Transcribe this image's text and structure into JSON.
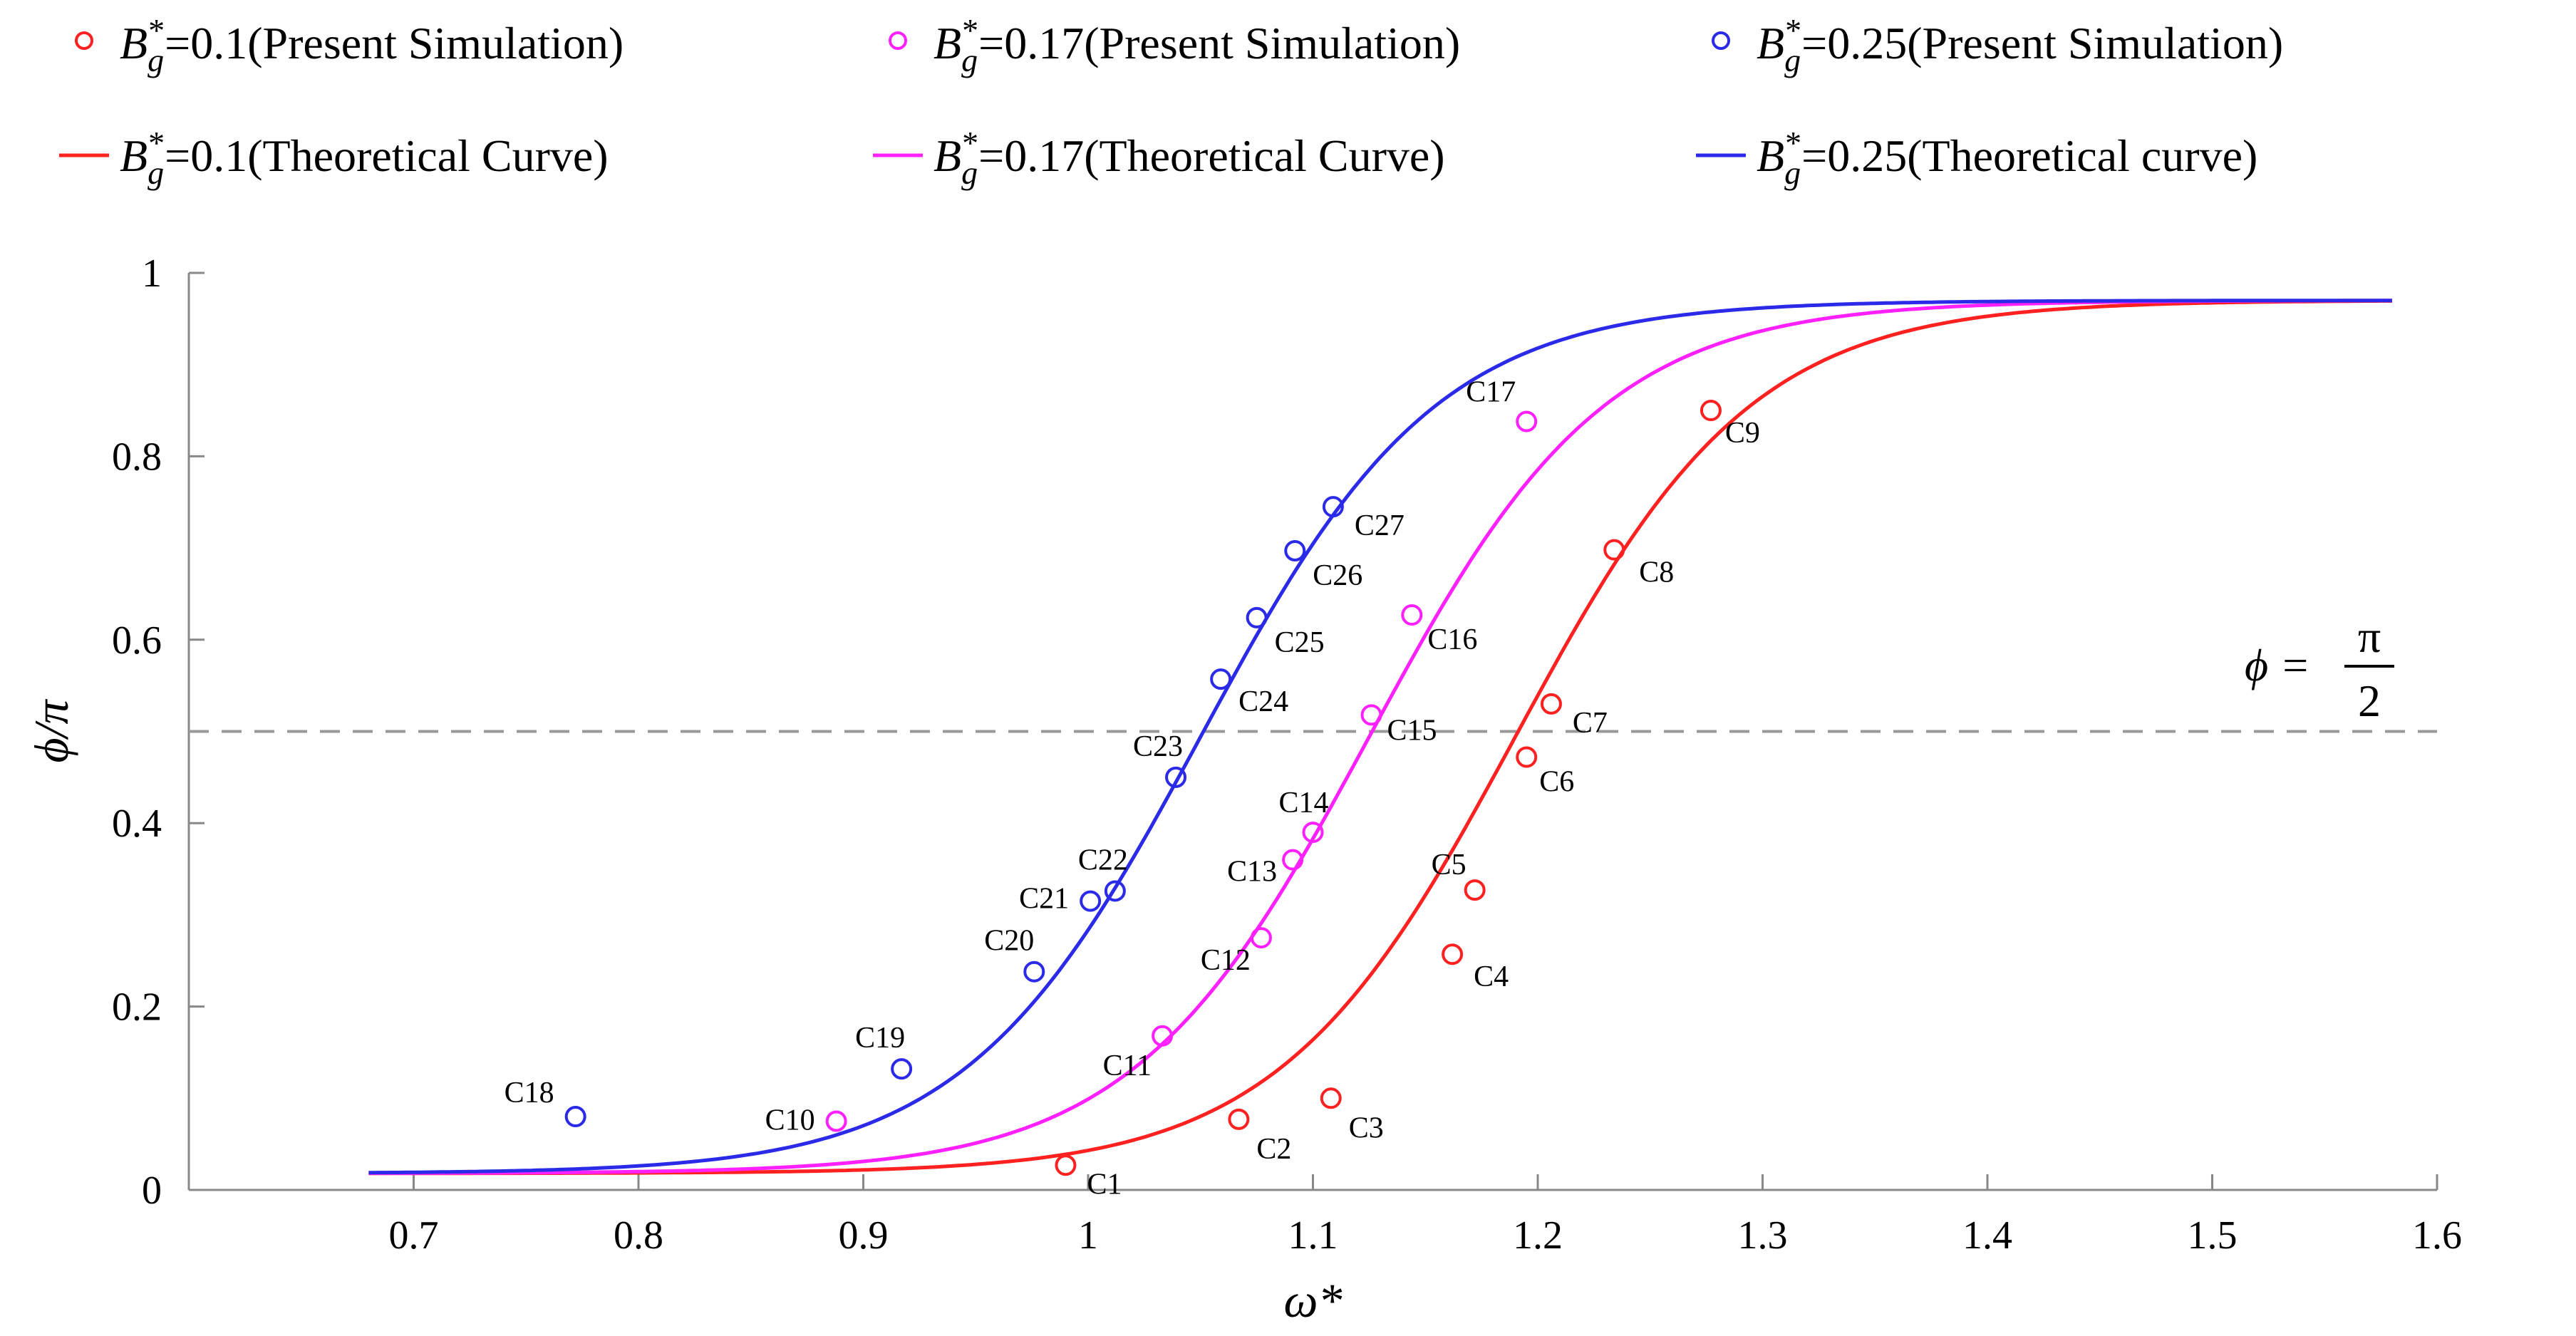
{
  "chart_data": {
    "type": "scatter+line",
    "xlabel": "ω*",
    "ylabel": "ϕ/π",
    "xlim": [
      0.6,
      1.6
    ],
    "ylim": [
      0,
      1
    ],
    "x_ticks": [
      "0.7",
      "0.8",
      "0.9",
      "1",
      "1.1",
      "1.2",
      "1.3",
      "1.4",
      "1.5",
      "1.6"
    ],
    "y_ticks": [
      "0",
      "0.2",
      "0.4",
      "0.6",
      "0.8",
      "1"
    ],
    "reference_line": {
      "y": 0.5,
      "style": "dashed",
      "color": "#999999",
      "label_lhs": "ϕ =",
      "label_num": "π",
      "label_den": "2"
    },
    "legend": {
      "sim_suffix": "(Present Simulation)",
      "theo_suffix": [
        "(Theoretical  Curve)",
        "(Theoretical  Curve)",
        "(Theoretical  curve)"
      ]
    },
    "series": [
      {
        "name": "Bg*=0.1",
        "value_label": "=0.1",
        "color": "#ff2020",
        "curve": {
          "omega0": 1.19,
          "k": 19.0
        },
        "points": [
          {
            "label": "C1",
            "x": 0.99,
            "y": 0.027
          },
          {
            "label": "C2",
            "x": 1.067,
            "y": 0.077
          },
          {
            "label": "C3",
            "x": 1.108,
            "y": 0.1
          },
          {
            "label": "C4",
            "x": 1.162,
            "y": 0.257
          },
          {
            "label": "C5",
            "x": 1.172,
            "y": 0.327
          },
          {
            "label": "C6",
            "x": 1.195,
            "y": 0.472
          },
          {
            "label": "C7",
            "x": 1.206,
            "y": 0.53
          },
          {
            "label": "C8",
            "x": 1.234,
            "y": 0.698
          },
          {
            "label": "C9",
            "x": 1.277,
            "y": 0.85
          }
        ]
      },
      {
        "name": "Bg*=0.17",
        "value_label": "=0.17",
        "color": "#ff20ff",
        "curve": {
          "omega0": 1.125,
          "k": 19.0
        },
        "points": [
          {
            "label": "C10",
            "x": 0.888,
            "y": 0.075
          },
          {
            "label": "C11",
            "x": 1.033,
            "y": 0.168
          },
          {
            "label": "C12",
            "x": 1.077,
            "y": 0.275
          },
          {
            "label": "C13",
            "x": 1.091,
            "y": 0.36
          },
          {
            "label": "C14",
            "x": 1.1,
            "y": 0.39
          },
          {
            "label": "C15",
            "x": 1.126,
            "y": 0.518
          },
          {
            "label": "C16",
            "x": 1.144,
            "y": 0.627
          },
          {
            "label": "C17",
            "x": 1.195,
            "y": 0.838
          }
        ]
      },
      {
        "name": "Bg*=0.25",
        "value_label": "=0.25",
        "color": "#2a2ae8",
        "curve": {
          "omega0": 1.05,
          "k": 19.0
        },
        "points": [
          {
            "label": "C18",
            "x": 0.772,
            "y": 0.08
          },
          {
            "label": "C19",
            "x": 0.917,
            "y": 0.132
          },
          {
            "label": "C20",
            "x": 0.976,
            "y": 0.238
          },
          {
            "label": "C21",
            "x": 1.001,
            "y": 0.315
          },
          {
            "label": "C22",
            "x": 1.012,
            "y": 0.326
          },
          {
            "label": "C23",
            "x": 1.039,
            "y": 0.45
          },
          {
            "label": "C24",
            "x": 1.059,
            "y": 0.557
          },
          {
            "label": "C25",
            "x": 1.075,
            "y": 0.624
          },
          {
            "label": "C26",
            "x": 1.092,
            "y": 0.697
          },
          {
            "label": "C27",
            "x": 1.109,
            "y": 0.745
          }
        ]
      }
    ]
  }
}
